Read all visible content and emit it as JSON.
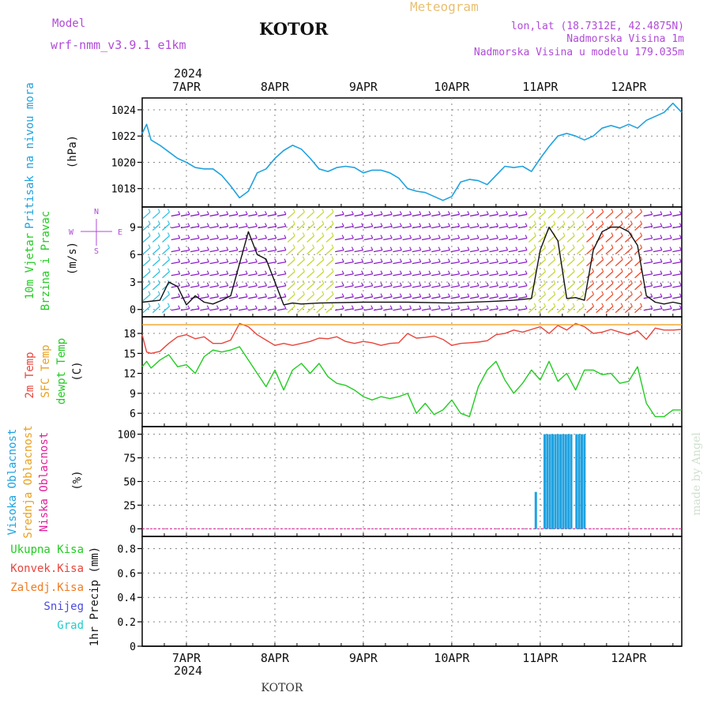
{
  "header": {
    "model_label": "Model",
    "model_name": "wrf-nmm_v3.9.1 e1km",
    "station": "KOTOR",
    "product": "Meteogram",
    "coords": "lon,lat (18.7312E, 42.4875N)",
    "elevation": "Nadmorska Visina 1m",
    "model_elevation": "Nadmorska Visina u modelu 179.035m",
    "footer_station": "KOTOR",
    "watermark": "made by Angel"
  },
  "colors": {
    "pressure": "#1fa2e0",
    "temp_2m": "#e8453c",
    "temp_sfc": "#f0a020",
    "dewpoint": "#22cc22",
    "cloud_high": "#1fa2e0",
    "cloud_mid": "#e8a020",
    "cloud_low": "#e0209a",
    "wind_speed": "#111111",
    "barbs_main": "#8a1fc8"
  },
  "time_axis": {
    "top_year": "2024",
    "bottom_year": "2024",
    "days": [
      "7APR",
      "8APR",
      "9APR",
      "10APR",
      "11APR",
      "12APR"
    ],
    "day_positions": [
      0.5,
      1.5,
      2.5,
      3.5,
      4.5,
      5.5
    ],
    "range": [
      0,
      6.1
    ]
  },
  "chart_data": [
    {
      "type": "line",
      "name": "pressure",
      "ylabel": "Pritisak na nivou mora",
      "units": "(hPa)",
      "ylim": [
        1016.6,
        1024.9
      ],
      "yticks": [
        1018,
        1020,
        1022,
        1024
      ],
      "grid": true,
      "x": [
        0,
        0.05,
        0.1,
        0.2,
        0.3,
        0.4,
        0.5,
        0.6,
        0.7,
        0.8,
        0.9,
        1.0,
        1.1,
        1.2,
        1.3,
        1.4,
        1.5,
        1.6,
        1.7,
        1.8,
        1.9,
        2.0,
        2.1,
        2.2,
        2.3,
        2.4,
        2.5,
        2.6,
        2.7,
        2.8,
        2.9,
        3.0,
        3.1,
        3.2,
        3.3,
        3.4,
        3.5,
        3.6,
        3.7,
        3.8,
        3.9,
        4.0,
        4.1,
        4.2,
        4.3,
        4.4,
        4.5,
        4.6,
        4.7,
        4.8,
        4.9,
        5.0,
        5.1,
        5.2,
        5.3,
        5.4,
        5.5,
        5.6,
        5.7,
        5.8,
        5.9,
        6.0,
        6.1
      ],
      "y": [
        1022.2,
        1022.9,
        1021.7,
        1021.3,
        1020.8,
        1020.3,
        1020.0,
        1019.6,
        1019.5,
        1019.5,
        1019.0,
        1018.2,
        1017.3,
        1017.8,
        1019.2,
        1019.5,
        1020.3,
        1020.9,
        1021.3,
        1021.0,
        1020.3,
        1019.5,
        1019.3,
        1019.6,
        1019.7,
        1019.6,
        1019.2,
        1019.4,
        1019.4,
        1019.2,
        1018.8,
        1018.0,
        1017.8,
        1017.7,
        1017.4,
        1017.1,
        1017.4,
        1018.5,
        1018.7,
        1018.6,
        1018.3,
        1019.0,
        1019.7,
        1019.6,
        1019.7,
        1019.3,
        1020.3,
        1021.2,
        1022.0,
        1022.2,
        1022.0,
        1021.7,
        1022.0,
        1022.6,
        1022.8,
        1022.6,
        1022.9,
        1022.6,
        1023.2,
        1023.5,
        1023.8,
        1024.5,
        1023.8
      ]
    },
    {
      "type": "line",
      "name": "wind",
      "ylabel": "10m Vjetar Brzina i Pravac",
      "units": "(m/s)",
      "ylim": [
        -0.8,
        11.2
      ],
      "yticks": [
        0,
        3,
        6,
        9
      ],
      "grid": true,
      "compass": [
        "N",
        "E",
        "S",
        "W"
      ],
      "x": [
        0,
        0.2,
        0.3,
        0.4,
        0.5,
        0.6,
        0.7,
        0.8,
        0.9,
        1.0,
        1.1,
        1.2,
        1.3,
        1.4,
        1.5,
        1.6,
        1.7,
        1.8,
        2.0,
        2.5,
        3.0,
        3.5,
        4.0,
        4.2,
        4.4,
        4.5,
        4.6,
        4.7,
        4.8,
        4.9,
        5.0,
        5.1,
        5.2,
        5.3,
        5.4,
        5.5,
        5.6,
        5.7,
        5.8,
        5.9,
        6.0,
        6.1
      ],
      "y": [
        0.8,
        1.0,
        3.0,
        2.5,
        0.5,
        1.5,
        0.8,
        0.6,
        1.0,
        1.5,
        5.0,
        8.5,
        6.0,
        5.5,
        3.0,
        0.5,
        0.7,
        0.6,
        0.7,
        0.8,
        0.8,
        0.7,
        0.9,
        1.0,
        1.2,
        6.5,
        9.0,
        7.5,
        1.2,
        1.3,
        1.0,
        6.5,
        8.5,
        9.0,
        9.0,
        8.5,
        7.0,
        1.5,
        0.8,
        0.6,
        0.8,
        0.6
      ]
    },
    {
      "type": "line",
      "name": "temperature",
      "ylabel": "2m Temp",
      "ylabel2": "SFC Temp",
      "ylabel3": "dewpt Temp",
      "units": "(C)",
      "ylim": [
        4.0,
        20.5
      ],
      "yticks": [
        6,
        9,
        12,
        15,
        18
      ],
      "grid": true,
      "series": [
        {
          "name": "2m Temp",
          "x": [
            0,
            0.05,
            0.1,
            0.2,
            0.3,
            0.4,
            0.5,
            0.6,
            0.7,
            0.8,
            0.9,
            1.0,
            1.1,
            1.2,
            1.3,
            1.4,
            1.5,
            1.6,
            1.7,
            1.8,
            1.9,
            2.0,
            2.1,
            2.2,
            2.3,
            2.4,
            2.5,
            2.6,
            2.7,
            2.8,
            2.9,
            3.0,
            3.1,
            3.2,
            3.3,
            3.4,
            3.5,
            3.6,
            3.7,
            3.8,
            3.9,
            4.0,
            4.1,
            4.2,
            4.3,
            4.4,
            4.5,
            4.6,
            4.7,
            4.8,
            4.9,
            5.0,
            5.1,
            5.2,
            5.3,
            5.4,
            5.5,
            5.6,
            5.7,
            5.8,
            5.9,
            6.0,
            6.1
          ],
          "y": [
            17.8,
            15.2,
            15.0,
            15.3,
            16.5,
            17.5,
            17.8,
            17.2,
            17.5,
            16.5,
            16.5,
            17.0,
            19.5,
            19.0,
            17.8,
            17.0,
            16.2,
            16.5,
            16.2,
            16.5,
            16.8,
            17.3,
            17.2,
            17.5,
            16.8,
            16.5,
            16.8,
            16.6,
            16.2,
            16.5,
            16.6,
            18.0,
            17.3,
            17.4,
            17.6,
            17.1,
            16.2,
            16.5,
            16.6,
            16.7,
            16.9,
            17.8,
            18.0,
            18.5,
            18.2,
            18.6,
            19.0,
            18.0,
            19.2,
            18.5,
            19.5,
            19.0,
            18.0,
            18.2,
            18.6,
            18.2,
            17.8,
            18.4,
            17.1,
            18.8,
            18.5,
            18.5,
            18.6
          ]
        },
        {
          "name": "SFC Temp",
          "x": [
            0,
            6.1
          ],
          "y": [
            19.3,
            19.3
          ]
        },
        {
          "name": "dewpt Temp",
          "x": [
            0,
            0.05,
            0.1,
            0.2,
            0.3,
            0.4,
            0.5,
            0.6,
            0.7,
            0.8,
            0.9,
            1.0,
            1.1,
            1.2,
            1.3,
            1.4,
            1.5,
            1.6,
            1.7,
            1.8,
            1.9,
            2.0,
            2.1,
            2.2,
            2.3,
            2.4,
            2.5,
            2.6,
            2.7,
            2.8,
            2.9,
            3.0,
            3.1,
            3.2,
            3.3,
            3.4,
            3.5,
            3.6,
            3.7,
            3.8,
            3.9,
            4.0,
            4.1,
            4.2,
            4.3,
            4.4,
            4.5,
            4.6,
            4.7,
            4.8,
            4.9,
            5.0,
            5.1,
            5.2,
            5.3,
            5.4,
            5.5,
            5.6,
            5.7,
            5.8,
            5.9,
            6.0,
            6.1
          ],
          "y": [
            13.0,
            13.8,
            12.8,
            14.0,
            14.8,
            13.0,
            13.3,
            12.0,
            14.5,
            15.5,
            15.2,
            15.5,
            16.0,
            14.0,
            12.0,
            10.0,
            12.5,
            9.5,
            12.5,
            13.5,
            12.0,
            13.5,
            11.5,
            10.5,
            10.2,
            9.5,
            8.5,
            8.0,
            8.5,
            8.2,
            8.5,
            9.0,
            6.0,
            7.5,
            5.8,
            6.5,
            8.0,
            6.0,
            5.5,
            10.0,
            12.5,
            13.8,
            11.0,
            9.0,
            10.5,
            12.5,
            11.0,
            13.8,
            10.8,
            12.0,
            9.5,
            12.5,
            12.5,
            11.8,
            12.0,
            10.5,
            10.8,
            13.0,
            7.5,
            5.5,
            5.5,
            6.5,
            6.5
          ]
        }
      ]
    },
    {
      "type": "bar",
      "name": "clouds",
      "ylabel": "Visoka Oblacnost",
      "ylabel2": "Srednja Oblacnost",
      "ylabel3": "Niska Oblacnost",
      "units": "(%)",
      "ylim": [
        -8,
        108
      ],
      "yticks": [
        0,
        25,
        50,
        75,
        100
      ],
      "grid": true,
      "series": [
        {
          "name": "Visoka Oblacnost",
          "x": [
            4.45,
            4.52,
            4.55,
            4.58,
            4.61,
            4.64,
            4.67,
            4.7,
            4.73,
            4.76,
            4.79,
            4.82,
            4.85,
            4.88,
            4.91,
            4.94,
            4.97,
            5.0
          ],
          "values": [
            39,
            0,
            100,
            100,
            100,
            100,
            100,
            100,
            100,
            100,
            100,
            100,
            100,
            0,
            100,
            100,
            100,
            100
          ]
        }
      ]
    },
    {
      "type": "line",
      "name": "precipitation",
      "legend": [
        "Ukupna Kisa",
        "Konvek.Kisa",
        "Zaledj.Kisa",
        "Snijeg",
        "Grad"
      ],
      "legend_colors": [
        "#22cc22",
        "#e8453c",
        "#f07a20",
        "#4b4be0",
        "#22cccc"
      ],
      "ylabel": "1hr Precip",
      "units": "(mm)",
      "ylim": [
        0,
        0.9
      ],
      "yticks": [
        0,
        0.2,
        0.4,
        0.6,
        0.8
      ],
      "grid": true,
      "x": [
        0,
        6.1
      ],
      "y": [
        0,
        0
      ]
    }
  ]
}
